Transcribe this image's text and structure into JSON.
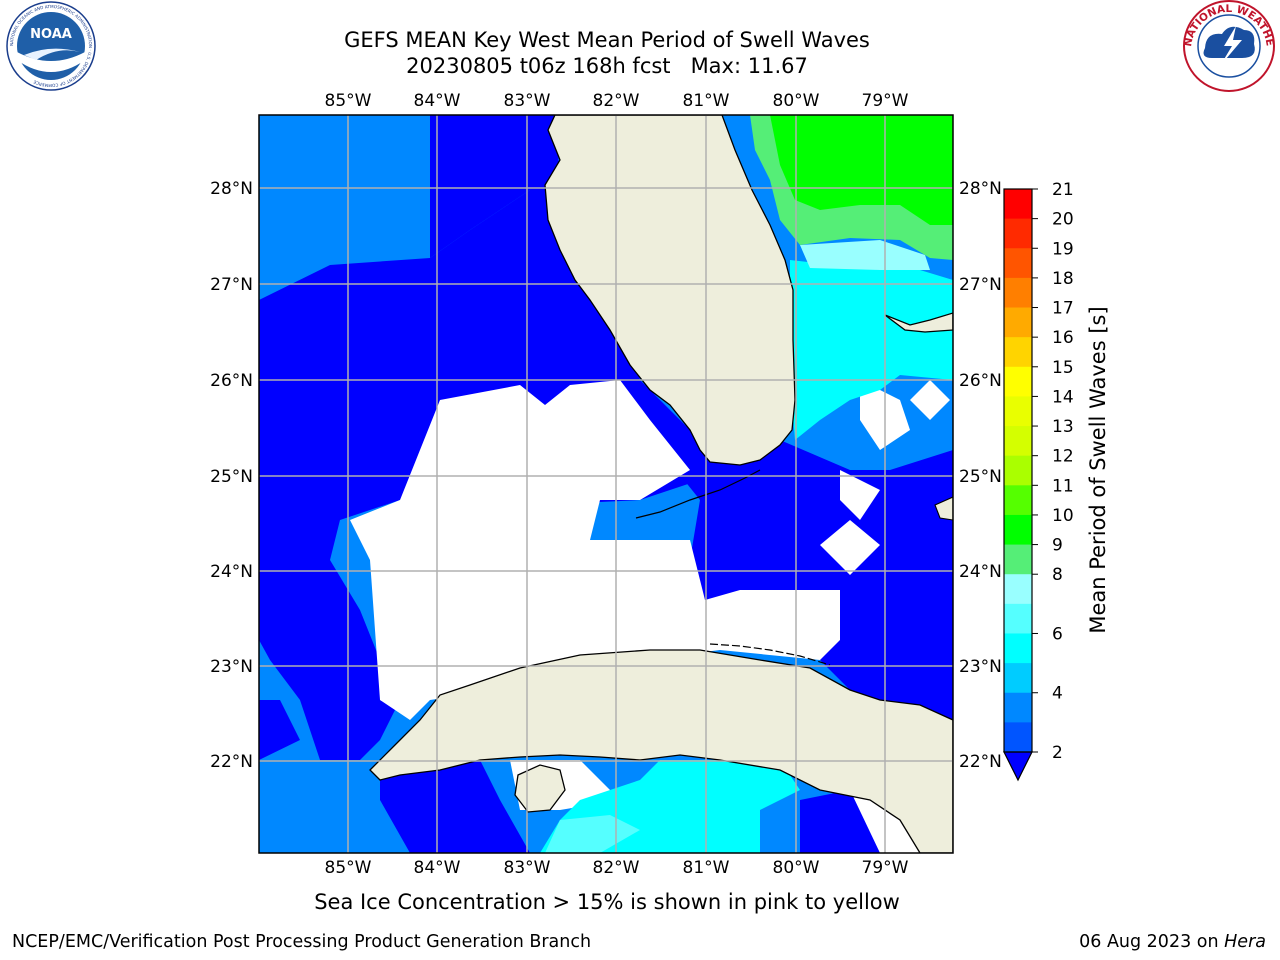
{
  "header": {
    "title_line1": "GEFS MEAN Key West Mean Period of Swell Waves",
    "title_line2": "20230805 t06z 168h fcst   Max: 11.67"
  },
  "logos": {
    "noaa_text": "NOAA",
    "noaa_ring_text": "NATIONAL OCEANIC AND ATMOSPHERIC ADMINISTRATION · U.S. DEPARTMENT OF COMMERCE",
    "nws_ring_text": "NATIONAL WEATHER SERVICE"
  },
  "map": {
    "lon_labels": [
      "85°W",
      "84°W",
      "83°W",
      "82°W",
      "81°W",
      "80°W",
      "79°W"
    ],
    "lat_labels": [
      "28°N",
      "27°N",
      "26°N",
      "25°N",
      "24°N",
      "23°N",
      "22°N"
    ],
    "colors": {
      "land": "#eeeedc",
      "gridline": "#b0b0b0",
      "coast": "#000000"
    }
  },
  "colorbar": {
    "label": "Mean Period of Swell Waves [s]",
    "ticks": [
      "21",
      "20",
      "19",
      "18",
      "17",
      "16",
      "15",
      "14",
      "13",
      "12",
      "11",
      "10",
      "9",
      "8",
      "7",
      "6",
      "5",
      "4",
      "3",
      "2"
    ],
    "tick_labels": [
      "21",
      "20",
      "19",
      "18",
      "17",
      "16",
      "15",
      "14",
      "13",
      "12",
      "11",
      "10",
      "9",
      "8",
      "6",
      "4",
      "2"
    ],
    "colors_top_to_bottom": [
      "#ff0000",
      "#ff2a00",
      "#ff5500",
      "#ff7f00",
      "#ffaa00",
      "#ffd400",
      "#ffff00",
      "#e9ff00",
      "#d4ff00",
      "#aaff00",
      "#55ff00",
      "#00ff00",
      "#55ee77",
      "#99ffff",
      "#55ffff",
      "#00ffff",
      "#00ccff",
      "#0088ff",
      "#0055ff"
    ]
  },
  "subtitle": "Sea Ice Concentration > 15% is shown in pink to yellow",
  "footer": {
    "left": "NCEP/EMC/Verification Post Processing Product Generation Branch",
    "right_date": "06 Aug 2023 on ",
    "right_host": "Hera"
  }
}
